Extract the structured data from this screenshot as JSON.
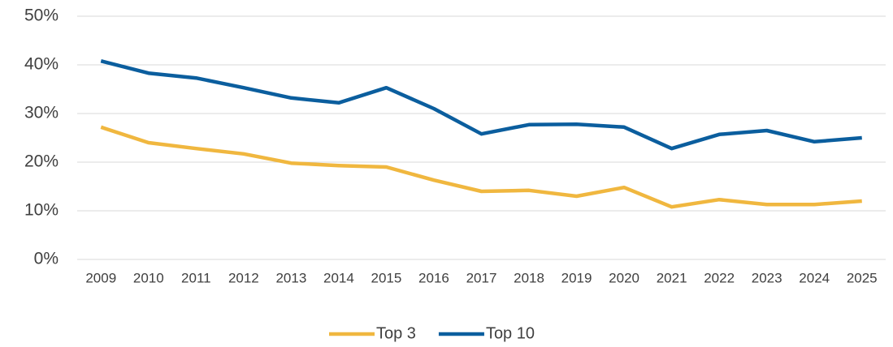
{
  "chart_data": {
    "type": "line",
    "x": [
      "2009",
      "2010",
      "2011",
      "2012",
      "2013",
      "2014",
      "2015",
      "2016",
      "2017",
      "2018",
      "2019",
      "2020",
      "2021",
      "2022",
      "2023",
      "2024",
      "2025"
    ],
    "series": [
      {
        "name": "Top 3",
        "color": "#f0b73f",
        "values": [
          27.2,
          24,
          22.8,
          21.7,
          19.8,
          19.3,
          19,
          16.3,
          14,
          14.2,
          13,
          14.8,
          10.8,
          12.3,
          11.3,
          11.3,
          12
        ]
      },
      {
        "name": "Top 10",
        "color": "#0b5e9e",
        "values": [
          40.8,
          38.3,
          37.3,
          35.3,
          33.2,
          32.2,
          35.3,
          31,
          25.8,
          27.7,
          27.8,
          27.2,
          22.8,
          25.7,
          26.5,
          24.2,
          25
        ]
      }
    ],
    "ylim": [
      0,
      50
    ],
    "yticks": [
      {
        "value": 0,
        "label": "0%"
      },
      {
        "value": 10,
        "label": "10%"
      },
      {
        "value": 20,
        "label": "20%"
      },
      {
        "value": 30,
        "label": "30%"
      },
      {
        "value": 40,
        "label": "40%"
      },
      {
        "value": 50,
        "label": "50%"
      }
    ],
    "grid": true,
    "legend": "bottom"
  }
}
